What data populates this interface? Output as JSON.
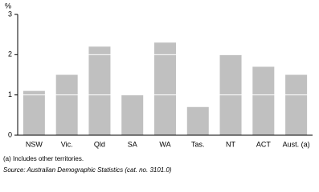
{
  "chart_data": {
    "type": "bar",
    "y_label": "%",
    "categories": [
      "NSW",
      "Vic.",
      "Qld",
      "SA",
      "WA",
      "Tas.",
      "NT",
      "ACT",
      "Aust. (a)"
    ],
    "values": [
      1.1,
      1.5,
      2.2,
      1.0,
      2.3,
      0.7,
      2.0,
      1.7,
      1.5
    ],
    "color": "#c0c0c0",
    "grid_color": "#ffffff",
    "ylim": [
      0,
      3
    ],
    "yticks": [
      0,
      1,
      2,
      3
    ],
    "grid": true,
    "footnote": "(a) Includes other territories.",
    "source": "Source: Australian Demographic Statistics (cat. no. 3101.0)"
  }
}
